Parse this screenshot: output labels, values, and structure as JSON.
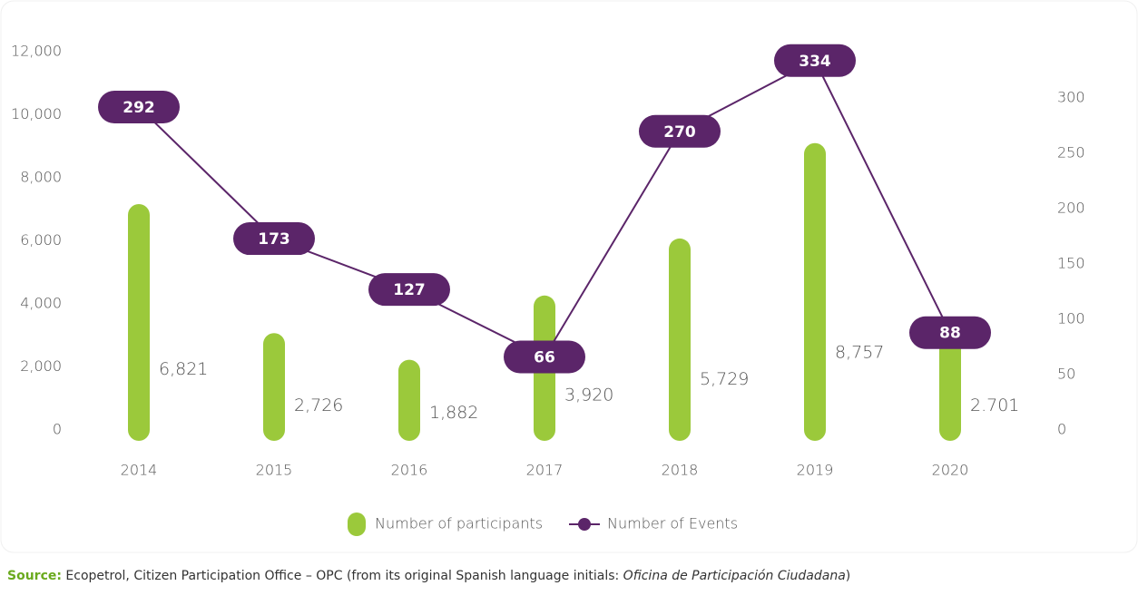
{
  "chart_data": {
    "type": "bar",
    "categories": [
      "2014",
      "2015",
      "2016",
      "2017",
      "2018",
      "2019",
      "2020"
    ],
    "series": [
      {
        "name": "Number of participants",
        "type": "bar",
        "color": "#9bc93b",
        "values": [
          6821,
          2726,
          1882,
          3920,
          5729,
          8757,
          2701
        ],
        "value_labels": [
          "6,821",
          "2,726",
          "1,882",
          "3,920",
          "5,729",
          "8,757",
          "2.701"
        ]
      },
      {
        "name": "Number of Events",
        "type": "line",
        "axis": "y2",
        "color": "#5b2569",
        "values": [
          292,
          173,
          127,
          66,
          270,
          334,
          88
        ]
      }
    ],
    "ylim": [
      0,
      12000
    ],
    "yticks": [
      0,
      {
        "value": 2000,
        "label": "2,000"
      },
      {
        "value": 4000,
        "label": "4,000"
      },
      {
        "value": 6000,
        "label": "6,000"
      },
      {
        "value": 8000,
        "label": "8,000"
      },
      {
        "value": 10000,
        "label": "10,000"
      },
      {
        "value": 12000,
        "label": "12,000"
      }
    ],
    "y2lim": [
      0,
      342
    ],
    "y2ticks": [
      0,
      50,
      100,
      150,
      200,
      250,
      300
    ],
    "grid": false,
    "legend": "bottom"
  },
  "source": {
    "label": "Source:",
    "text": " Ecopetrol, Citizen Participation Office – OPC (from its original Spanish language initials: ",
    "italic": "Oficina de Participación Ciudadana",
    "end": ")"
  }
}
